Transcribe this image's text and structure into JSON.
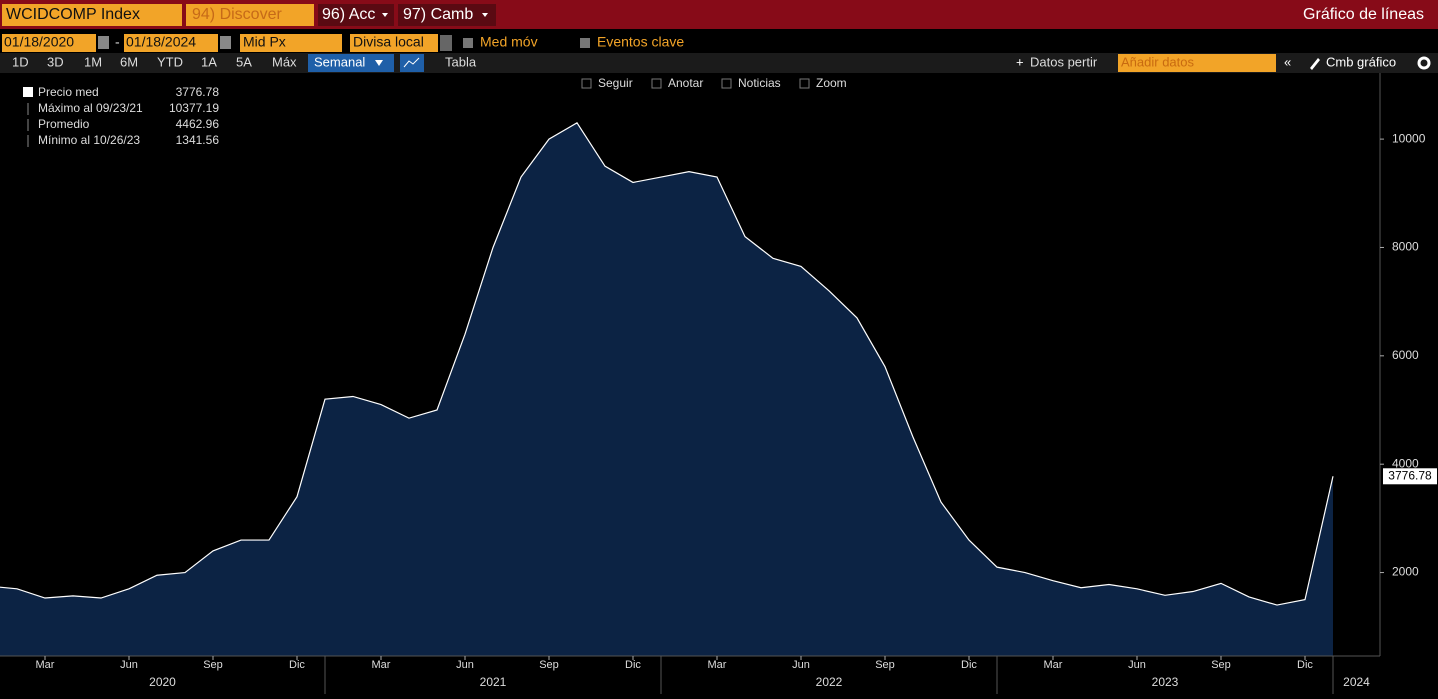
{
  "ui": {
    "security": "WCIDCOMP Index",
    "menu1": "94) Discover",
    "menu2": "96) Acc",
    "menu3": "97) Camb",
    "view": "Gráfico de líneas",
    "start_date": "01/18/2020",
    "date_sep": "-",
    "end_date": "01/18/2024",
    "field": "Mid Px",
    "currency": "Divisa local",
    "ma": "Med móv",
    "events": "Eventos clave",
    "periods": [
      "1D",
      "3D",
      "1M",
      "6M",
      "YTD",
      "1A",
      "5A",
      "Máx"
    ],
    "frequency": "Semanal",
    "table": "Tabla",
    "split": "Datos pertir",
    "add": "Añadir datos",
    "edit": "Cmb gráfico",
    "tools": [
      "Seguir",
      "Anotar",
      "Noticias",
      "Zoom"
    ]
  },
  "chart_data": {
    "type": "area",
    "series_name": "Precio med",
    "color": "#0c2344",
    "line_color": "#ffffff",
    "x": [
      "2020-01",
      "2020-02",
      "2020-03",
      "2020-04",
      "2020-05",
      "2020-06",
      "2020-07",
      "2020-08",
      "2020-09",
      "2020-10",
      "2020-11",
      "2020-12",
      "2021-01",
      "2021-02",
      "2021-03",
      "2021-04",
      "2021-05",
      "2021-06",
      "2021-07",
      "2021-08",
      "2021-09",
      "2021-10",
      "2021-11",
      "2021-12",
      "2022-01",
      "2022-02",
      "2022-03",
      "2022-04",
      "2022-05",
      "2022-06",
      "2022-07",
      "2022-08",
      "2022-09",
      "2022-10",
      "2022-11",
      "2022-12",
      "2023-01",
      "2023-02",
      "2023-03",
      "2023-04",
      "2023-05",
      "2023-06",
      "2023-07",
      "2023-08",
      "2023-09",
      "2023-10",
      "2023-11",
      "2023-12",
      "2024-01"
    ],
    "values": [
      1750,
      1700,
      1530,
      1570,
      1530,
      1700,
      1950,
      2000,
      2400,
      2600,
      2600,
      3400,
      5200,
      5250,
      5100,
      4850,
      5000,
      6400,
      8000,
      9300,
      10000,
      10300,
      9500,
      9200,
      9300,
      9400,
      9300,
      8200,
      7800,
      7650,
      7200,
      6700,
      5800,
      4500,
      3300,
      2600,
      2100,
      2000,
      1850,
      1720,
      1780,
      1700,
      1580,
      1650,
      1800,
      1550,
      1400,
      1500,
      3776.78
    ],
    "stats": [
      {
        "label": "Máximo al 09/23/21",
        "value": 10377.19
      },
      {
        "label": "Promedio",
        "value": 4462.96
      },
      {
        "label": "Mínimo al 10/26/23",
        "value": 1341.56
      }
    ],
    "ylim": [
      460,
      11220
    ],
    "yticks": [
      2000,
      4000,
      6000,
      8000,
      10000
    ],
    "xticks": [
      {
        "value": "2020-03",
        "label": "Mar"
      },
      {
        "value": "2020-06",
        "label": "Jun"
      },
      {
        "value": "2020-09",
        "label": "Sep"
      },
      {
        "value": "2020-12",
        "label": "Dic"
      },
      {
        "value": "2021-03",
        "label": "Mar"
      },
      {
        "value": "2021-06",
        "label": "Jun"
      },
      {
        "value": "2021-09",
        "label": "Sep"
      },
      {
        "value": "2021-12",
        "label": "Dic"
      },
      {
        "value": "2022-03",
        "label": "Mar"
      },
      {
        "value": "2022-06",
        "label": "Jun"
      },
      {
        "value": "2022-09",
        "label": "Sep"
      },
      {
        "value": "2022-12",
        "label": "Dic"
      },
      {
        "value": "2023-03",
        "label": "Mar"
      },
      {
        "value": "2023-06",
        "label": "Jun"
      },
      {
        "value": "2023-09",
        "label": "Sep"
      },
      {
        "value": "2023-12",
        "label": "Dic"
      }
    ],
    "years": [
      2020,
      2021,
      2022,
      2023,
      2024
    ],
    "grid": false
  }
}
